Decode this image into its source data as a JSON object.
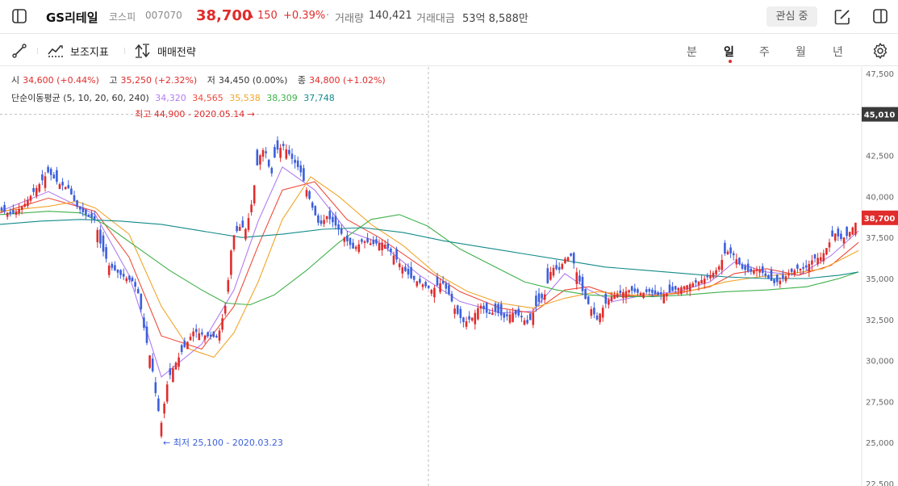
{
  "header": {
    "stock_name": "GS리테일",
    "market": "코스피",
    "code": "007070",
    "price": "38,700",
    "change": "150",
    "change_pct": "+0.39%",
    "volume_label": "거래량",
    "volume": "140,421",
    "value_label": "거래대금",
    "value": "53억 8,588만",
    "favorite_label": "관심 중",
    "dot_sep": "·"
  },
  "toolbar": {
    "indicator_label": "보조지표",
    "strategy_label": "매매전략",
    "periods": [
      "분",
      "일",
      "주",
      "월",
      "년"
    ],
    "active_period": "일"
  },
  "ohlc": {
    "open_label": "시",
    "open": "34,600 (+0.44%)",
    "high_label": "고",
    "high": "35,250 (+2.32%)",
    "low_label": "저",
    "low": "34,450 (0.00%)",
    "close_label": "종",
    "close": "34,800 (+1.02%)"
  },
  "ma_legend": {
    "label": "단순이동평균 (5, 10, 20, 60, 240)",
    "values": [
      {
        "value": "34,320",
        "color": "#b07cf0"
      },
      {
        "value": "34,565",
        "color": "#ef4b3a"
      },
      {
        "value": "35,538",
        "color": "#f2a52b"
      },
      {
        "value": "38,309",
        "color": "#3fb14a"
      },
      {
        "value": "37,748",
        "color": "#138a8a"
      }
    ]
  },
  "chart_data": {
    "type": "candlestick",
    "ylim": [
      22500,
      47500
    ],
    "y_ticks": [
      22500,
      25000,
      27500,
      30000,
      32500,
      35000,
      37500,
      40000,
      42500,
      47500
    ],
    "y_tick_labels": [
      "22,500",
      "25,000",
      "27,500",
      "30,000",
      "32,500",
      "35,000",
      "37,500",
      "40,000",
      "42,500",
      "47,500"
    ],
    "current_price": 38700,
    "current_price_label": "38,700",
    "crosshair_price": 45010,
    "crosshair_label": "45,010",
    "max_annotation": {
      "value": 44900,
      "text": "최고 44,900 - 2020.05.14 →"
    },
    "min_annotation": {
      "value": 25100,
      "text": "← 최저 25,100 - 2020.03.23"
    },
    "up_color": "#e02c2c",
    "down_color": "#3c5fdc",
    "ma_colors": [
      "#b07cf0",
      "#ef4b3a",
      "#f2a52b",
      "#3fb14a",
      "#138a8a"
    ],
    "close_path": [
      [
        0,
        39200
      ],
      [
        15,
        38900
      ],
      [
        30,
        39500
      ],
      [
        45,
        40500
      ],
      [
        60,
        41500
      ],
      [
        72,
        40800
      ],
      [
        85,
        40500
      ],
      [
        95,
        39400
      ],
      [
        108,
        38800
      ],
      [
        118,
        38600
      ],
      [
        125,
        37000
      ],
      [
        135,
        35800
      ],
      [
        150,
        35200
      ],
      [
        165,
        34800
      ],
      [
        172,
        34000
      ],
      [
        180,
        31500
      ],
      [
        188,
        29800
      ],
      [
        195,
        27200
      ],
      [
        200,
        26200
      ],
      [
        208,
        28800
      ],
      [
        215,
        29600
      ],
      [
        225,
        30500
      ],
      [
        240,
        31800
      ],
      [
        255,
        31500
      ],
      [
        270,
        31400
      ],
      [
        280,
        33500
      ],
      [
        288,
        37500
      ],
      [
        298,
        38200
      ],
      [
        305,
        38000
      ],
      [
        312,
        39600
      ],
      [
        320,
        42300
      ],
      [
        328,
        43000
      ],
      [
        336,
        41200
      ],
      [
        342,
        42800
      ],
      [
        352,
        43100
      ],
      [
        362,
        42300
      ],
      [
        372,
        41600
      ],
      [
        380,
        40400
      ],
      [
        388,
        39200
      ],
      [
        396,
        38200
      ],
      [
        405,
        38800
      ],
      [
        415,
        38300
      ],
      [
        425,
        37600
      ],
      [
        438,
        36800
      ],
      [
        450,
        37300
      ],
      [
        462,
        37100
      ],
      [
        475,
        37200
      ],
      [
        488,
        36400
      ],
      [
        500,
        35600
      ],
      [
        510,
        35000
      ],
      [
        522,
        34700
      ],
      [
        535,
        34300
      ],
      [
        548,
        34800
      ],
      [
        556,
        34100
      ],
      [
        565,
        33000
      ],
      [
        575,
        32300
      ],
      [
        585,
        32600
      ],
      [
        595,
        33400
      ],
      [
        605,
        32800
      ],
      [
        615,
        33000
      ],
      [
        625,
        32600
      ],
      [
        635,
        32900
      ],
      [
        645,
        32700
      ],
      [
        655,
        32200
      ],
      [
        665,
        33400
      ],
      [
        675,
        34000
      ],
      [
        684,
        35700
      ],
      [
        693,
        35500
      ],
      [
        700,
        36200
      ],
      [
        708,
        36400
      ],
      [
        716,
        35200
      ],
      [
        724,
        33900
      ],
      [
        732,
        33200
      ],
      [
        740,
        32500
      ],
      [
        748,
        33300
      ],
      [
        758,
        33900
      ],
      [
        768,
        34100
      ],
      [
        780,
        34300
      ],
      [
        792,
        34100
      ],
      [
        805,
        34200
      ],
      [
        815,
        34000
      ],
      [
        828,
        34100
      ],
      [
        840,
        34400
      ],
      [
        852,
        34600
      ],
      [
        865,
        34800
      ],
      [
        878,
        35100
      ],
      [
        890,
        35600
      ],
      [
        900,
        36700
      ],
      [
        910,
        36400
      ],
      [
        920,
        35600
      ],
      [
        930,
        35400
      ],
      [
        940,
        35600
      ],
      [
        950,
        35100
      ],
      [
        960,
        34700
      ],
      [
        968,
        34900
      ],
      [
        978,
        35300
      ],
      [
        988,
        35600
      ],
      [
        998,
        35600
      ],
      [
        1008,
        36200
      ],
      [
        1018,
        36300
      ],
      [
        1026,
        37000
      ],
      [
        1034,
        37800
      ],
      [
        1042,
        37400
      ],
      [
        1050,
        37600
      ],
      [
        1058,
        38200
      ],
      [
        1064,
        38700
      ]
    ],
    "ma_paths": [
      [
        [
          0,
          39100
        ],
        [
          60,
          40300
        ],
        [
          118,
          38900
        ],
        [
          160,
          35200
        ],
        [
          200,
          29000
        ],
        [
          250,
          31000
        ],
        [
          290,
          34300
        ],
        [
          320,
          38500
        ],
        [
          350,
          41800
        ],
        [
          390,
          40400
        ],
        [
          430,
          37900
        ],
        [
          470,
          37200
        ],
        [
          520,
          35200
        ],
        [
          570,
          33600
        ],
        [
          620,
          32900
        ],
        [
          660,
          33000
        ],
        [
          700,
          35300
        ],
        [
          730,
          34300
        ],
        [
          760,
          33600
        ],
        [
          800,
          34000
        ],
        [
          840,
          34200
        ],
        [
          880,
          34800
        ],
        [
          910,
          36000
        ],
        [
          950,
          35400
        ],
        [
          990,
          35200
        ],
        [
          1030,
          36400
        ],
        [
          1064,
          37900
        ]
      ],
      [
        [
          0,
          39000
        ],
        [
          60,
          39900
        ],
        [
          118,
          39100
        ],
        [
          160,
          36300
        ],
        [
          200,
          31500
        ],
        [
          250,
          30700
        ],
        [
          290,
          33300
        ],
        [
          320,
          37000
        ],
        [
          350,
          40400
        ],
        [
          390,
          40900
        ],
        [
          430,
          38600
        ],
        [
          470,
          37500
        ],
        [
          520,
          35800
        ],
        [
          570,
          34200
        ],
        [
          620,
          33200
        ],
        [
          660,
          32900
        ],
        [
          700,
          34300
        ],
        [
          730,
          34500
        ],
        [
          760,
          34000
        ],
        [
          800,
          33900
        ],
        [
          840,
          34100
        ],
        [
          880,
          34500
        ],
        [
          910,
          35300
        ],
        [
          950,
          35600
        ],
        [
          990,
          35200
        ],
        [
          1030,
          35800
        ],
        [
          1064,
          37200
        ]
      ],
      [
        [
          0,
          39100
        ],
        [
          60,
          39400
        ],
        [
          95,
          39700
        ],
        [
          118,
          39300
        ],
        [
          160,
          37700
        ],
        [
          200,
          33300
        ],
        [
          235,
          30700
        ],
        [
          265,
          30200
        ],
        [
          290,
          31700
        ],
        [
          320,
          34800
        ],
        [
          350,
          38600
        ],
        [
          385,
          41200
        ],
        [
          420,
          40000
        ],
        [
          460,
          38300
        ],
        [
          500,
          37000
        ],
        [
          540,
          35300
        ],
        [
          580,
          34200
        ],
        [
          620,
          33500
        ],
        [
          660,
          33200
        ],
        [
          700,
          33800
        ],
        [
          740,
          34200
        ],
        [
          780,
          34000
        ],
        [
          820,
          34000
        ],
        [
          860,
          34300
        ],
        [
          900,
          34800
        ],
        [
          940,
          35100
        ],
        [
          980,
          35300
        ],
        [
          1020,
          35600
        ],
        [
          1064,
          36700
        ]
      ],
      [
        [
          0,
          38900
        ],
        [
          60,
          39100
        ],
        [
          100,
          39000
        ],
        [
          130,
          38300
        ],
        [
          170,
          36900
        ],
        [
          210,
          35500
        ],
        [
          250,
          34300
        ],
        [
          280,
          33500
        ],
        [
          310,
          33400
        ],
        [
          340,
          34000
        ],
        [
          380,
          35500
        ],
        [
          420,
          37200
        ],
        [
          460,
          38600
        ],
        [
          495,
          38900
        ],
        [
          530,
          38200
        ],
        [
          570,
          36800
        ],
        [
          610,
          35800
        ],
        [
          650,
          34800
        ],
        [
          690,
          34300
        ],
        [
          730,
          34000
        ],
        [
          770,
          33900
        ],
        [
          810,
          33900
        ],
        [
          850,
          34000
        ],
        [
          900,
          34200
        ],
        [
          950,
          34300
        ],
        [
          1000,
          34500
        ],
        [
          1040,
          35000
        ],
        [
          1064,
          35400
        ]
      ],
      [
        [
          0,
          38300
        ],
        [
          50,
          38500
        ],
        [
          100,
          38600
        ],
        [
          150,
          38500
        ],
        [
          200,
          38300
        ],
        [
          250,
          37900
        ],
        [
          300,
          37500
        ],
        [
          350,
          37700
        ],
        [
          400,
          38000
        ],
        [
          450,
          38100
        ],
        [
          500,
          37800
        ],
        [
          550,
          37300
        ],
        [
          600,
          36900
        ],
        [
          650,
          36500
        ],
        [
          700,
          36100
        ],
        [
          750,
          35700
        ],
        [
          800,
          35500
        ],
        [
          850,
          35300
        ],
        [
          900,
          35100
        ],
        [
          950,
          35000
        ],
        [
          1000,
          35000
        ],
        [
          1040,
          35200
        ],
        [
          1064,
          35400
        ]
      ]
    ]
  }
}
